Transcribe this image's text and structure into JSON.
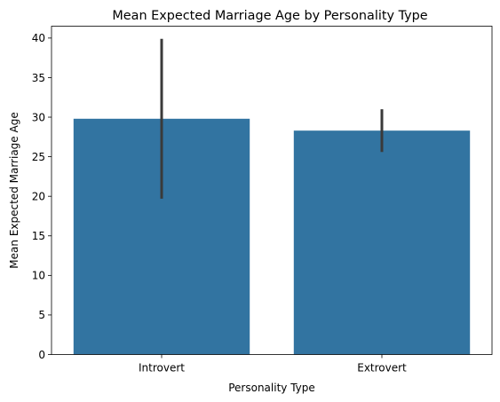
{
  "chart_data": {
    "type": "bar",
    "title": "Mean Expected Marriage Age by Personality Type",
    "xlabel": "Personality Type",
    "ylabel": "Mean Expected Marriage Age",
    "categories": [
      "Introvert",
      "Extrovert"
    ],
    "values": [
      29.8,
      28.3
    ],
    "error_bars": [
      {
        "low": 19.7,
        "high": 39.9
      },
      {
        "low": 25.6,
        "high": 31.0
      }
    ],
    "ylim": [
      0,
      41.5
    ],
    "yticks": [
      0,
      5,
      10,
      15,
      20,
      25,
      30,
      35,
      40
    ],
    "bar_color": "#3274a1",
    "error_color": "#3a3a3a",
    "grid": false,
    "legend": "none"
  }
}
